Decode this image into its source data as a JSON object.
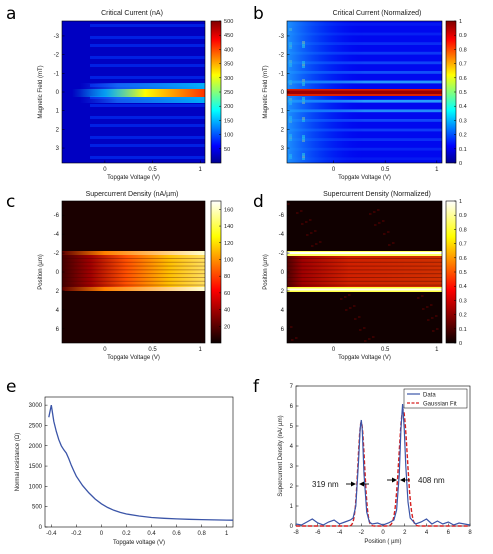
{
  "panels": [
    {
      "id": "a",
      "letter": "a",
      "type": "heatmap",
      "title": "Critical Current (nA)",
      "xlabel": "Topgate Voltage (V)",
      "ylabel": "Magnetic Field (mT)",
      "x_ticks": [
        "0",
        "0.5",
        "1"
      ],
      "y_ticks": [
        "-3",
        "-2",
        "-1",
        "0",
        "1",
        "2",
        "3"
      ],
      "colorbar": {
        "colormap": "jet",
        "range": [
          0,
          500
        ],
        "ticks": [
          "50",
          "100",
          "150",
          "200",
          "250",
          "300",
          "350",
          "400",
          "450",
          "500"
        ]
      }
    },
    {
      "id": "b",
      "letter": "b",
      "type": "heatmap",
      "title": "Critical Current (Normalized)",
      "xlabel": "Topgate Voltage (V)",
      "ylabel": "Magnetic Field (mT)",
      "x_ticks": [
        "0",
        "0.5",
        "1"
      ],
      "y_ticks": [
        "-3",
        "-2",
        "-1",
        "0",
        "1",
        "2",
        "3"
      ],
      "colorbar": {
        "colormap": "jet",
        "range": [
          0,
          1
        ],
        "ticks": [
          "0",
          "0.1",
          "0.2",
          "0.3",
          "0.4",
          "0.5",
          "0.6",
          "0.7",
          "0.8",
          "0.9",
          "1"
        ]
      }
    },
    {
      "id": "c",
      "letter": "c",
      "type": "heatmap",
      "title": "Supercurrent Density (nA/µm)",
      "xlabel": "Topgate Voltage (V)",
      "ylabel": "Position (µm)",
      "x_ticks": [
        "0",
        "0.5",
        "1"
      ],
      "y_ticks": [
        "-6",
        "-4",
        "-2",
        "0",
        "2",
        "4",
        "6"
      ],
      "colorbar": {
        "colormap": "hot",
        "range": [
          0,
          170
        ],
        "ticks": [
          "20",
          "40",
          "60",
          "80",
          "100",
          "120",
          "140",
          "160"
        ]
      }
    },
    {
      "id": "d",
      "letter": "d",
      "type": "heatmap",
      "title": "Supercurrent Density (Normalized)",
      "xlabel": "Topgate Voltage (V)",
      "ylabel": "Position (µm)",
      "x_ticks": [
        "0",
        "0.5",
        "1"
      ],
      "y_ticks": [
        "-6",
        "-4",
        "-2",
        "0",
        "2",
        "4",
        "6"
      ],
      "colorbar": {
        "colormap": "hot",
        "range": [
          0,
          1
        ],
        "ticks": [
          "0",
          "0.1",
          "0.2",
          "0.3",
          "0.4",
          "0.5",
          "0.6",
          "0.7",
          "0.8",
          "0.9",
          "1"
        ]
      }
    },
    {
      "id": "e",
      "letter": "e",
      "xlabel": "Topgate voltage (V)",
      "ylabel": "Normal resistance (Ω)",
      "x_ticks": [
        "-0.4",
        "-0.2",
        "0",
        "0.2",
        "0.4",
        "0.6",
        "0.8",
        "1"
      ],
      "y_ticks": [
        "0",
        "500",
        "1000",
        "1500",
        "2000",
        "2500",
        "3000"
      ]
    },
    {
      "id": "f",
      "letter": "f",
      "xlabel": "Position ( µm)",
      "ylabel": "Supercurrent Density (nA/ µm)",
      "x_ticks": [
        "-8",
        "-6",
        "-4",
        "-2",
        "0",
        "2",
        "4",
        "6",
        "8"
      ],
      "y_ticks": [
        "0",
        "1",
        "2",
        "3",
        "4",
        "5",
        "6",
        "7"
      ],
      "legend": {
        "placement": "top-right",
        "entries": [
          "Data",
          "Gaussian Fit"
        ]
      },
      "annotations": [
        "319 nm",
        "408 nm"
      ]
    }
  ],
  "colors": {
    "data_line": "#3b55a8",
    "fit_line": "#d62020"
  },
  "chart_data": [
    {
      "type": "heatmap",
      "panel": "a",
      "x_range": [
        -0.45,
        1.05
      ],
      "y_range": [
        -3.8,
        3.8
      ],
      "color_range": [
        0,
        500
      ],
      "description_values": {
        "peak_at_B0_nA": 480,
        "peak_voltage_V": 1.0,
        "onset_voltage_V": -0.2
      }
    },
    {
      "type": "heatmap",
      "panel": "b",
      "x_range": [
        -0.45,
        1.05
      ],
      "y_range": [
        -3.8,
        3.8
      ],
      "color_range": [
        0,
        1
      ]
    },
    {
      "type": "heatmap",
      "panel": "c",
      "x_range": [
        -0.45,
        1.05
      ],
      "y_range": [
        -7.5,
        7.5
      ],
      "color_range": [
        0,
        170
      ],
      "bands_um": [
        -2,
        2
      ]
    },
    {
      "type": "heatmap",
      "panel": "d",
      "x_range": [
        -0.45,
        1.05
      ],
      "y_range": [
        -7.5,
        7.5
      ],
      "color_range": [
        0,
        1
      ],
      "bands_um": [
        -2,
        2
      ]
    },
    {
      "type": "line",
      "panel": "e",
      "xlim": [
        -0.45,
        1.05
      ],
      "ylim": [
        0,
        3200
      ],
      "series": [
        {
          "x": [
            -0.42,
            -0.4,
            -0.38,
            -0.36,
            -0.34,
            -0.32,
            -0.3,
            -0.28,
            -0.26,
            -0.24,
            -0.22,
            -0.2,
            -0.15,
            -0.1,
            -0.05,
            0.0,
            0.05,
            0.1,
            0.15,
            0.2,
            0.3,
            0.4,
            0.5,
            0.6,
            0.7,
            0.8,
            0.9,
            1.0,
            1.05
          ],
          "y": [
            2700,
            3000,
            2600,
            2350,
            2150,
            2000,
            1900,
            1820,
            1680,
            1520,
            1380,
            1250,
            1020,
            840,
            690,
            570,
            480,
            410,
            360,
            320,
            270,
            235,
            215,
            200,
            190,
            182,
            175,
            170,
            168
          ]
        }
      ]
    },
    {
      "type": "line",
      "panel": "f",
      "xlim": [
        -8,
        8
      ],
      "ylim": [
        0,
        7
      ],
      "series": [
        {
          "name": "Data",
          "x": [
            -8,
            -7.5,
            -7,
            -6.5,
            -6,
            -5.5,
            -5,
            -4.5,
            -4,
            -3.5,
            -3,
            -2.75,
            -2.5,
            -2.25,
            -2.1,
            -2,
            -1.9,
            -1.75,
            -1.5,
            -1.25,
            -1,
            -0.5,
            0,
            0.5,
            1,
            1.25,
            1.5,
            1.65,
            1.8,
            1.95,
            2.1,
            2.3,
            2.5,
            3,
            3.5,
            4,
            4.5,
            5,
            5.5,
            6,
            6.5,
            7,
            7.5,
            8
          ],
          "y": [
            0.1,
            0.05,
            0.2,
            0.35,
            0.15,
            0.05,
            0.2,
            0.3,
            0.1,
            0.2,
            0.3,
            0.4,
            1.0,
            3.2,
            4.9,
            5.3,
            4.8,
            2.6,
            0.7,
            0.2,
            0.1,
            0.15,
            0.05,
            0.15,
            0.3,
            0.8,
            2.6,
            4.8,
            6.1,
            4.9,
            3.0,
            1.2,
            0.4,
            0.1,
            0.2,
            0.35,
            0.1,
            0.25,
            0.1,
            0.2,
            0.05,
            0.15,
            0.1,
            0.05
          ]
        },
        {
          "name": "Gaussian Fit",
          "peaks": [
            {
              "center": -2.0,
              "amplitude": 5.2,
              "fwhm_nm": 319
            },
            {
              "center": 1.85,
              "amplitude": 5.8,
              "fwhm_nm": 408
            }
          ]
        }
      ]
    }
  ]
}
